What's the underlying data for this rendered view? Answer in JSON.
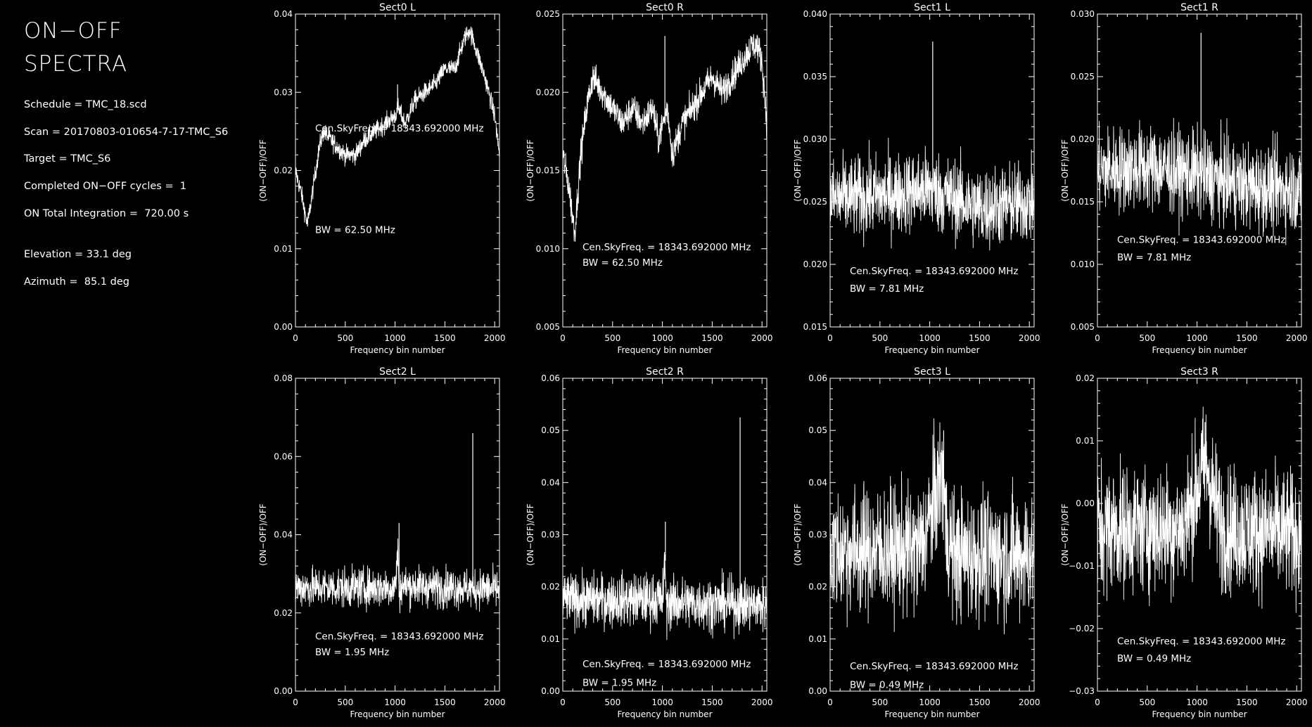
{
  "header": {
    "title_line1": "ON−OFF",
    "title_line2": "SPECTRA"
  },
  "info": {
    "schedule": "Schedule = TMC_18.scd",
    "scan": "Scan = 20170803-010654-7-17-TMC_S6",
    "target": "Target = TMC_S6",
    "cycles": "Completed ON−OFF cycles =  1",
    "integration": "ON Total Integration =  720.00 s",
    "elevation": "Elevation = 33.1 deg",
    "azimuth": "Azimuth =  85.1 deg"
  },
  "colors": {
    "background": "#000000",
    "foreground": "#ffffff"
  },
  "chart_data": [
    {
      "type": "line",
      "title": "Sect0 L",
      "xlabel": "Frequency bin number",
      "ylabel": "(ON−OFF)/OFF",
      "xlim": [
        0,
        2048
      ],
      "ylim": [
        0.0,
        0.04
      ],
      "xticks": [
        0,
        500,
        1000,
        1500,
        2000
      ],
      "xtick_labels": [
        "0",
        "500",
        "1000",
        "1500",
        "2000"
      ],
      "yticks": [
        0.0,
        0.01,
        0.02,
        0.03,
        0.04
      ],
      "ytick_labels": [
        "0.00",
        "0.01",
        "0.02",
        "0.03",
        "0.04"
      ],
      "annotations": [
        "Cen.SkyFreq. = 18343.692000 MHz",
        "BW = 62.50 MHz"
      ],
      "annotation_pos": [
        0.025,
        0.012
      ],
      "x": [
        0,
        60,
        120,
        180,
        240,
        280,
        350,
        420,
        500,
        600,
        700,
        800,
        900,
        1000,
        1030,
        1100,
        1200,
        1300,
        1400,
        1500,
        1600,
        1700,
        1750,
        1800,
        1900,
        2000,
        2048
      ],
      "y": [
        0.02,
        0.017,
        0.013,
        0.018,
        0.023,
        0.025,
        0.024,
        0.023,
        0.022,
        0.022,
        0.024,
        0.025,
        0.026,
        0.027,
        0.028,
        0.026,
        0.029,
        0.03,
        0.031,
        0.033,
        0.033,
        0.037,
        0.038,
        0.036,
        0.032,
        0.027,
        0.022
      ],
      "noise": 0.0006,
      "spikes": [
        [
          1025,
          0.031
        ]
      ]
    },
    {
      "type": "line",
      "title": "Sect0 R",
      "xlabel": "Frequency bin number",
      "ylabel": "(ON−OFF)/OFF",
      "xlim": [
        0,
        2048
      ],
      "ylim": [
        0.005,
        0.025
      ],
      "xticks": [
        0,
        500,
        1000,
        1500,
        2000
      ],
      "xtick_labels": [
        "0",
        "500",
        "1000",
        "1500",
        "2000"
      ],
      "yticks": [
        0.005,
        0.01,
        0.015,
        0.02,
        0.025
      ],
      "ytick_labels": [
        "0.005",
        "0.010",
        "0.015",
        "0.020",
        "0.025"
      ],
      "annotations": [
        "Cen.SkyFreq. = 18343.692000 MHz",
        "BW = 62.50 MHz"
      ],
      "annotation_pos": [
        0.0099,
        0.0089
      ],
      "x": [
        0,
        60,
        120,
        180,
        240,
        300,
        400,
        500,
        600,
        700,
        800,
        900,
        960,
        1050,
        1100,
        1200,
        1300,
        1400,
        1500,
        1600,
        1700,
        1800,
        1900,
        1950,
        2000,
        2048
      ],
      "y": [
        0.016,
        0.014,
        0.011,
        0.016,
        0.019,
        0.021,
        0.02,
        0.019,
        0.018,
        0.019,
        0.018,
        0.019,
        0.017,
        0.019,
        0.016,
        0.018,
        0.019,
        0.02,
        0.021,
        0.02,
        0.021,
        0.022,
        0.023,
        0.023,
        0.022,
        0.018
      ],
      "noise": 0.0005,
      "spikes": [
        [
          1025,
          0.0236
        ]
      ]
    },
    {
      "type": "line",
      "title": "Sect1 L",
      "xlabel": "Frequency bin number",
      "ylabel": "(ON−OFF)/OFF",
      "xlim": [
        0,
        2048
      ],
      "ylim": [
        0.015,
        0.04
      ],
      "xticks": [
        0,
        500,
        1000,
        1500,
        2000
      ],
      "xtick_labels": [
        "0",
        "500",
        "1000",
        "1500",
        "2000"
      ],
      "yticks": [
        0.015,
        0.02,
        0.025,
        0.03,
        0.035,
        0.04
      ],
      "ytick_labels": [
        "0.015",
        "0.020",
        "0.025",
        "0.030",
        "0.035",
        "0.040"
      ],
      "annotations": [
        "Cen.SkyFreq. = 18343.692000 MHz",
        "BW = 7.81 MHz"
      ],
      "annotation_pos": [
        0.0192,
        0.0178
      ],
      "x": [
        0,
        500,
        1000,
        1500,
        2048
      ],
      "y": [
        0.0252,
        0.0255,
        0.026,
        0.0245,
        0.025
      ],
      "noise": 0.0016,
      "spikes": [
        [
          1030,
          0.0378
        ]
      ]
    },
    {
      "type": "line",
      "title": "Sect1 R",
      "xlabel": "Frequency bin number",
      "ylabel": "(ON−OFF)/OFF",
      "xlim": [
        0,
        2048
      ],
      "ylim": [
        0.005,
        0.03
      ],
      "xticks": [
        0,
        500,
        1000,
        1500,
        2000
      ],
      "xtick_labels": [
        "0",
        "500",
        "1000",
        "1500",
        "2000"
      ],
      "yticks": [
        0.005,
        0.01,
        0.015,
        0.02,
        0.025,
        0.03
      ],
      "ytick_labels": [
        "0.005",
        "0.010",
        "0.015",
        "0.020",
        "0.025",
        "0.030"
      ],
      "annotations": [
        "Cen.SkyFreq. = 18343.692000 MHz",
        "BW = 7.81 MHz"
      ],
      "annotation_pos": [
        0.0117,
        0.0103
      ],
      "x": [
        0,
        500,
        1000,
        1500,
        2048
      ],
      "y": [
        0.0175,
        0.0178,
        0.0172,
        0.0162,
        0.016
      ],
      "noise": 0.0017,
      "spikes": [
        [
          1040,
          0.0285
        ]
      ]
    },
    {
      "type": "line",
      "title": "Sect2 L",
      "xlabel": "Frequency bin number",
      "ylabel": "(ON−OFF)/OFF",
      "xlim": [
        0,
        2048
      ],
      "ylim": [
        0.0,
        0.08
      ],
      "xticks": [
        0,
        500,
        1000,
        1500,
        2000
      ],
      "xtick_labels": [
        "0",
        "500",
        "1000",
        "1500",
        "2000"
      ],
      "yticks": [
        0.0,
        0.02,
        0.04,
        0.06,
        0.08
      ],
      "ytick_labels": [
        "0.00",
        "0.02",
        "0.04",
        "0.06",
        "0.08"
      ],
      "annotations": [
        "Cen.SkyFreq. = 18343.692000 MHz",
        "BW = 1.95 MHz"
      ],
      "annotation_pos": [
        0.0132,
        0.0092
      ],
      "x": [
        0,
        1000,
        1030,
        1040,
        1060,
        2048
      ],
      "y": [
        0.0265,
        0.0265,
        0.036,
        0.024,
        0.027,
        0.026
      ],
      "noise": 0.0025,
      "spikes": [
        [
          1040,
          0.043
        ],
        [
          1780,
          0.066
        ]
      ]
    },
    {
      "type": "line",
      "title": "Sect2 R",
      "xlabel": "Frequency bin number",
      "ylabel": "(ON−OFF)/OFF",
      "xlim": [
        0,
        2048
      ],
      "ylim": [
        0.0,
        0.06
      ],
      "xticks": [
        0,
        500,
        1000,
        1500,
        2000
      ],
      "xtick_labels": [
        "0",
        "500",
        "1000",
        "1500",
        "2000"
      ],
      "yticks": [
        0.0,
        0.01,
        0.02,
        0.03,
        0.04,
        0.05,
        0.06
      ],
      "ytick_labels": [
        "0.00",
        "0.01",
        "0.02",
        "0.03",
        "0.04",
        "0.05",
        "0.06"
      ],
      "annotations": [
        "Cen.SkyFreq. = 18343.692000 MHz",
        "BW = 1.95 MHz"
      ],
      "annotation_pos": [
        0.0046,
        0.001
      ],
      "x": [
        0,
        1000,
        1030,
        1040,
        1060,
        2048
      ],
      "y": [
        0.0175,
        0.0175,
        0.025,
        0.015,
        0.017,
        0.0165
      ],
      "noise": 0.0025,
      "spikes": [
        [
          1030,
          0.0325
        ],
        [
          1780,
          0.0525
        ]
      ]
    },
    {
      "type": "line",
      "title": "Sect3 L",
      "xlabel": "Frequency bin number",
      "ylabel": "(ON−OFF)/OFF",
      "xlim": [
        0,
        2048
      ],
      "ylim": [
        0.0,
        0.06
      ],
      "xticks": [
        0,
        500,
        1000,
        1500,
        2000
      ],
      "xtick_labels": [
        "0",
        "500",
        "1000",
        "1500",
        "2000"
      ],
      "yticks": [
        0.0,
        0.01,
        0.02,
        0.03,
        0.04,
        0.05,
        0.06
      ],
      "ytick_labels": [
        "0.00",
        "0.01",
        "0.02",
        "0.03",
        "0.04",
        "0.05",
        "0.06"
      ],
      "annotations": [
        "Cen.SkyFreq. = 18343.692000 MHz",
        "BW = 0.49 MHz"
      ],
      "annotation_pos": [
        0.0042,
        0.0006
      ],
      "x": [
        0,
        900,
        1000,
        1080,
        1130,
        1170,
        1250,
        2048
      ],
      "y": [
        0.027,
        0.027,
        0.033,
        0.039,
        0.042,
        0.03,
        0.026,
        0.026
      ],
      "noise": 0.006,
      "spikes": [
        [
          1140,
          0.05
        ]
      ]
    },
    {
      "type": "line",
      "title": "Sect3 R",
      "xlabel": "Frequency bin number",
      "ylabel": "(ON−OFF)/OFF",
      "xlim": [
        0,
        2048
      ],
      "ylim": [
        -0.03,
        0.02
      ],
      "xticks": [
        0,
        500,
        1000,
        1500,
        2000
      ],
      "xtick_labels": [
        "0",
        "500",
        "1000",
        "1500",
        "2000"
      ],
      "yticks": [
        -0.03,
        -0.02,
        -0.01,
        0.0,
        0.01,
        0.02
      ],
      "ytick_labels": [
        "−0.03",
        "−0.02",
        "−0.01",
        "0.00",
        "0.01",
        "0.02"
      ],
      "annotations": [
        "Cen.SkyFreq. = 18343.692000 MHz",
        "BW = 0.49 MHz"
      ],
      "annotation_pos": [
        -0.0225,
        -0.0253
      ],
      "x": [
        0,
        850,
        950,
        1050,
        1100,
        1150,
        1250,
        2048
      ],
      "y": [
        -0.004,
        -0.004,
        0.0,
        0.005,
        0.006,
        0.002,
        -0.004,
        -0.005
      ],
      "noise": 0.005,
      "spikes": [
        [
          1080,
          0.013
        ]
      ]
    }
  ]
}
